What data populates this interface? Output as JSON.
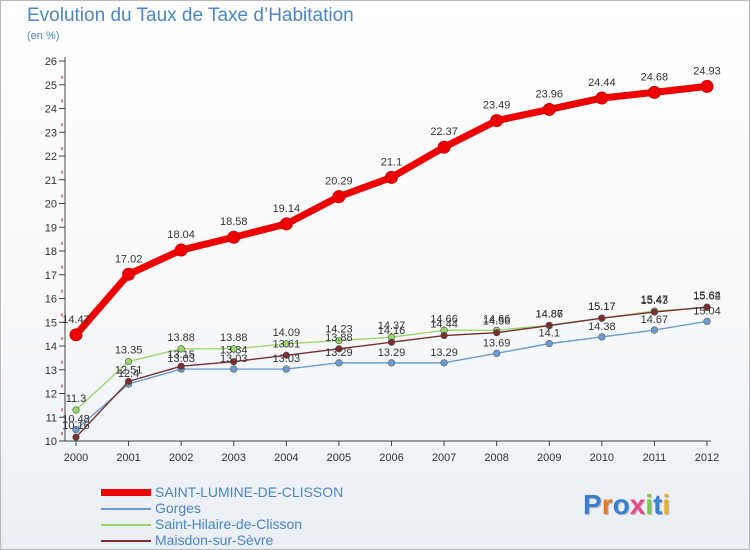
{
  "header": {
    "title": "Evolution du Taux de Taxe d’Habitation",
    "subtitle": "(en %)"
  },
  "logo": {
    "text": "Proxiti",
    "letter_colors": [
      "#3a7fd0",
      "#e8782a",
      "#3a7fd0",
      "#e84a8a",
      "#7cc84a",
      "#3a7fd0",
      "#e8b02a"
    ]
  },
  "chart_data": {
    "type": "line",
    "x": [
      "2000",
      "2001",
      "2002",
      "2003",
      "2004",
      "2005",
      "2006",
      "2007",
      "2008",
      "2009",
      "2010",
      "2011",
      "2012"
    ],
    "ylim": [
      10,
      26
    ],
    "yticks": [
      "10",
      "11",
      "12",
      "13",
      "14",
      "15",
      "16",
      "17",
      "18",
      "19",
      "20",
      "21",
      "22",
      "23",
      "24",
      "25",
      "26"
    ],
    "grid": false,
    "legend_position": "bottom-left",
    "series": [
      {
        "name": "SAINT-LUMINE-DE-CLISSON",
        "color": "#ee0000",
        "values": [
          14.47,
          17.02,
          18.04,
          18.58,
          19.14,
          20.29,
          21.1,
          22.37,
          23.49,
          23.96,
          24.44,
          24.68,
          24.93
        ],
        "labels": [
          "14.47",
          "17.02",
          "18.04",
          "18.58",
          "19.14",
          "20.29",
          "21.1",
          "22.37",
          "23.49",
          "23.96",
          "24.44",
          "24.68",
          "24.93"
        ]
      },
      {
        "name": "Gorges",
        "color": "#6a9ed2",
        "values": [
          10.48,
          12.4,
          13.03,
          13.03,
          13.03,
          13.29,
          13.29,
          13.29,
          13.69,
          14.1,
          14.38,
          14.67,
          15.04
        ],
        "labels": [
          "10.48",
          "12.4",
          "13.03",
          "13.03",
          "13.03",
          "13.29",
          "13.29",
          "13.29",
          "13.69",
          "14.1",
          "14.38",
          "14.67",
          "15.04"
        ]
      },
      {
        "name": "Saint-Hilaire-de-Clisson",
        "color": "#9ad86a",
        "values": [
          11.3,
          13.35,
          13.88,
          13.88,
          14.09,
          14.23,
          14.37,
          14.66,
          14.66,
          14.87,
          15.17,
          15.47,
          15.62
        ],
        "labels": [
          "11.3",
          "13.35",
          "13.88",
          "13.88",
          "14.09",
          "14.23",
          "14.37",
          "14.66",
          "14.66",
          "14.87",
          "15.17",
          "15.47",
          "15.62"
        ]
      },
      {
        "name": "Maisdon-sur-Sèvre",
        "color": "#7a2e2e",
        "values": [
          10.16,
          12.51,
          13.15,
          13.34,
          13.61,
          13.88,
          14.16,
          14.44,
          14.56,
          14.86,
          15.17,
          15.43,
          15.64
        ],
        "labels": [
          "10.16",
          "12.51",
          "13.15",
          "13.34",
          "13.61",
          "13.88",
          "14.16",
          "14.44",
          "14.56",
          "14.86",
          "15.17",
          "15.43",
          "15.64"
        ]
      }
    ]
  }
}
